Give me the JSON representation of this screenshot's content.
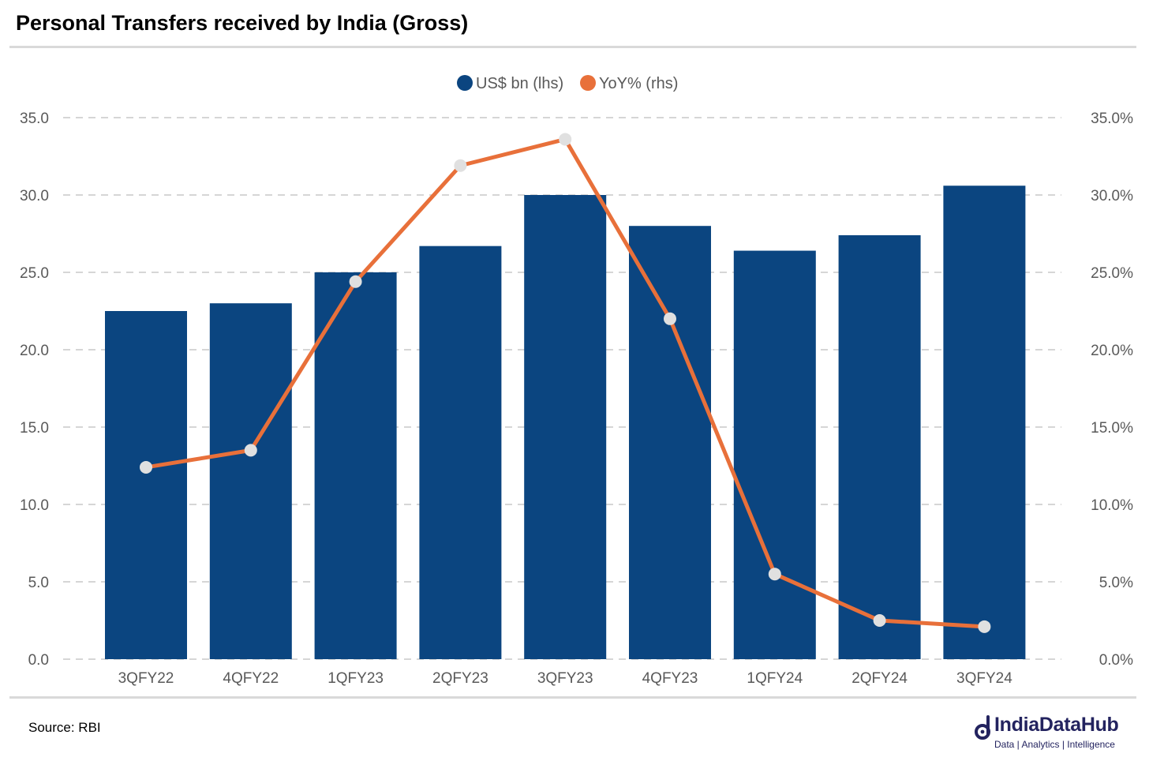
{
  "title": "Personal Transfers received by India (Gross)",
  "source": "Source: RBI",
  "brand": {
    "name": "IndiaDataHub",
    "tagline": "Data | Analytics | Intelligence"
  },
  "colors": {
    "bar": "#0b4580",
    "line": "#e8703a",
    "marker": "#e0e0e0",
    "grid": "#c8c8c8",
    "brand": "#23235f"
  },
  "chart_data": {
    "type": "bar",
    "categories": [
      "3QFY22",
      "4QFY22",
      "1QFY23",
      "2QFY23",
      "3QFY23",
      "4QFY23",
      "1QFY24",
      "2QFY24",
      "3QFY24"
    ],
    "series": [
      {
        "name": "US$ bn (lhs)",
        "type": "bar",
        "axis": "left",
        "values": [
          22.5,
          23.0,
          25.0,
          26.7,
          30.0,
          28.0,
          26.4,
          27.4,
          30.6
        ]
      },
      {
        "name": "YoY% (rhs)",
        "type": "line",
        "axis": "right",
        "values": [
          12.4,
          13.5,
          24.4,
          31.9,
          33.6,
          22.0,
          5.5,
          2.5,
          2.1
        ]
      }
    ],
    "ylim": [
      0,
      35
    ],
    "y2lim": [
      0,
      35
    ],
    "yticks": [
      "0.0",
      "5.0",
      "10.0",
      "15.0",
      "20.0",
      "25.0",
      "30.0",
      "35.0"
    ],
    "y2ticks": [
      "0.0%",
      "5.0%",
      "10.0%",
      "15.0%",
      "20.0%",
      "25.0%",
      "30.0%",
      "35.0%"
    ],
    "grid": true,
    "legend_position": "top-center"
  }
}
